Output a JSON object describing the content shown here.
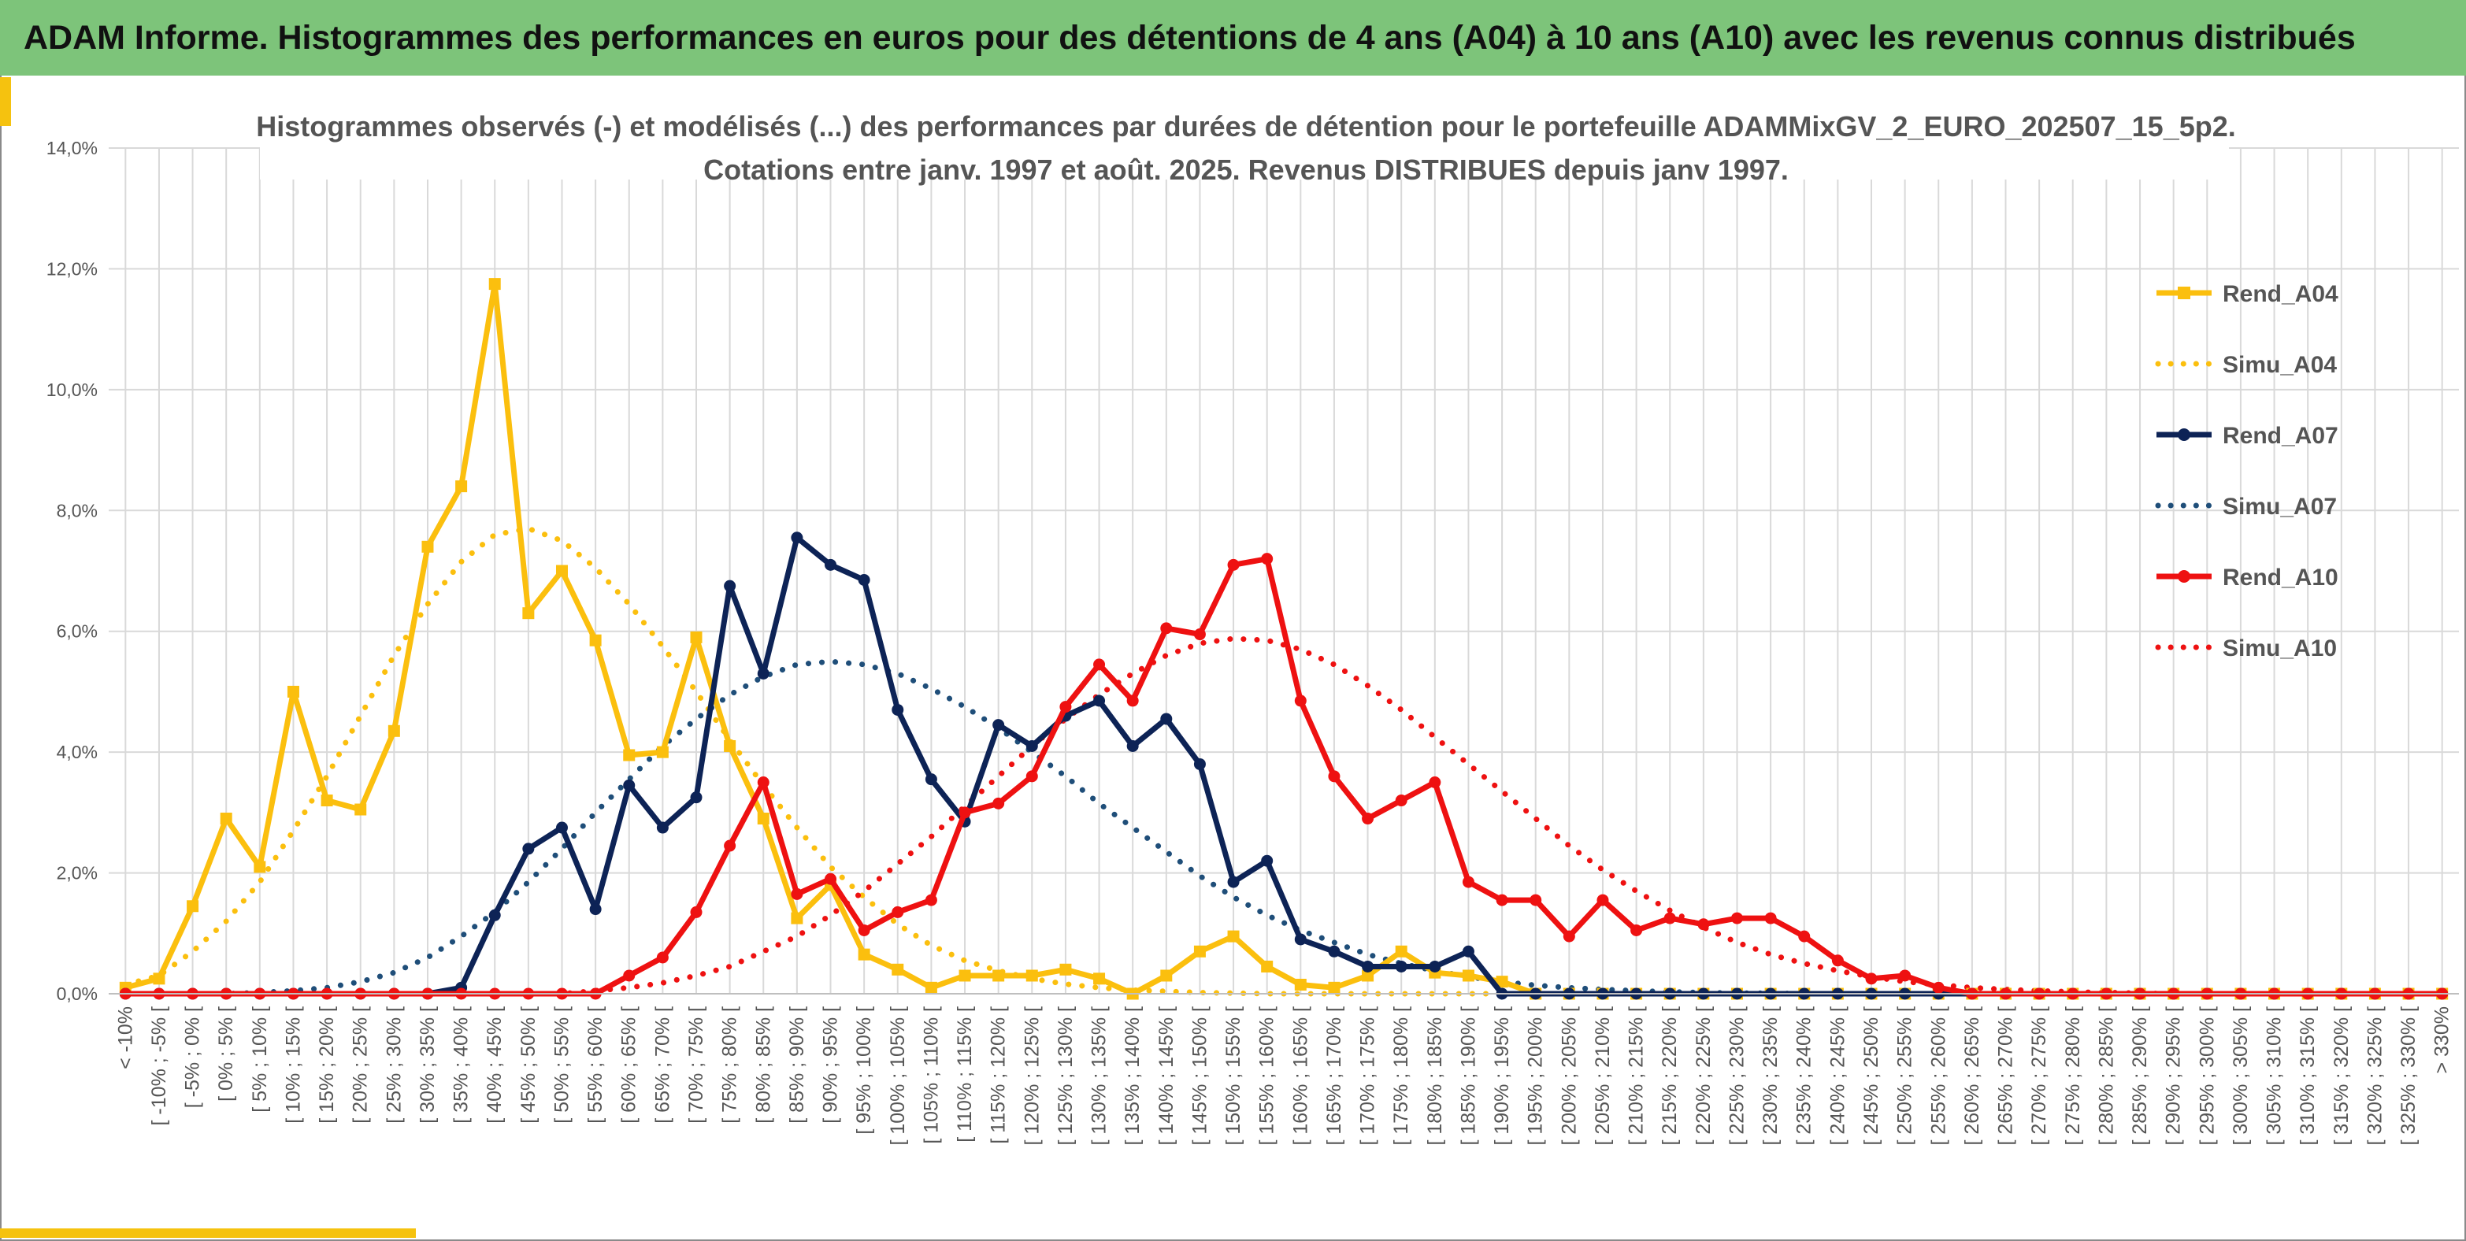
{
  "banner": {
    "title": "ADAM Informe. Histogrammes des performances en euros pour des détentions de 4 ans (A04) à 10 ans (A10) avec les revenus connus distribués"
  },
  "colors": {
    "banner_bg": "#7dc47a",
    "accent": "#f5c20f",
    "A04": "#fbbf0e",
    "A07": "#0d2356",
    "A07_simu": "#1f4e79",
    "A10": "#ee1111",
    "grid": "#d9d9d9",
    "text": "#555555"
  },
  "chart_data": {
    "type": "line",
    "title_lines": [
      "Histogrammes observés (-) et modélisés (...) des performances par durées de détention pour le portefeuille ADAMMixGV_2_EURO_202507_15_5p2.",
      "Cotations entre janv. 1997 et août. 2025. Revenus DISTRIBUES depuis janv 1997."
    ],
    "y_ticks": [
      "0,0%",
      "2,0%",
      "4,0%",
      "6,0%",
      "8,0%",
      "10,0%",
      "12,0%",
      "14,0%"
    ],
    "ylim": [
      0,
      14
    ],
    "grid": true,
    "legend_position": "right",
    "categories": [
      "< -10%",
      "[ -10% ; -5% [",
      "[ -5% ; 0% [",
      "[ 0% ; 5% [",
      "[ 5% ; 10% [",
      "[ 10% ; 15% [",
      "[ 15% ; 20% [",
      "[ 20% ; 25% [",
      "[ 25% ; 30% [",
      "[ 30% ; 35% [",
      "[ 35% ; 40% [",
      "[ 40% ; 45% [",
      "[ 45% ; 50% [",
      "[ 50% ; 55% [",
      "[ 55% ; 60% [",
      "[ 60% ; 65% [",
      "[ 65% ; 70% [",
      "[ 70% ; 75% [",
      "[ 75% ; 80% [",
      "[ 80% ; 85% [",
      "[ 85% ; 90% [",
      "[ 90% ; 95% [",
      "[ 95% ; 100% [",
      "[ 100% ; 105% [",
      "[ 105% ; 110% [",
      "[ 110% ; 115% [",
      "[ 115% ; 120% [",
      "[ 120% ; 125% [",
      "[ 125% ; 130% [",
      "[ 130% ; 135% [",
      "[ 135% ; 140% [",
      "[ 140% ; 145% [",
      "[ 145% ; 150% [",
      "[ 150% ; 155% [",
      "[ 155% ; 160% [",
      "[ 160% ; 165% [",
      "[ 165% ; 170% [",
      "[ 170% ; 175% [",
      "[ 175% ; 180% [",
      "[ 180% ; 185% [",
      "[ 185% ; 190% [",
      "[ 190% ; 195% [",
      "[ 195% ; 200% [",
      "[ 200% ; 205% [",
      "[ 205% ; 210% [",
      "[ 210% ; 215% [",
      "[ 215% ; 220% [",
      "[ 220% ; 225% [",
      "[ 225% ; 230% [",
      "[ 230% ; 235% [",
      "[ 235% ; 240% [",
      "[ 240% ; 245% [",
      "[ 245% ; 250% [",
      "[ 250% ; 255% [",
      "[ 255% ; 260% [",
      "[ 260% ; 265% [",
      "[ 265% ; 270% [",
      "[ 270% ; 275% [",
      "[ 275% ; 280% [",
      "[ 280% ; 285% [",
      "[ 285% ; 290% [",
      "[ 290% ; 295% [",
      "[ 295% ; 300% [",
      "[ 300% ; 305% [",
      "[ 305% ; 310% [",
      "[ 310% ; 315% [",
      "[ 315% ; 320% [",
      "[ 320% ; 325% [",
      "[ 325% ; 330% [",
      "> 330%"
    ],
    "series": [
      {
        "name": "Rend_A04",
        "style": "solid",
        "marker": "square",
        "color": "#fbbf0e",
        "values": [
          0.1,
          0.25,
          1.45,
          2.9,
          2.1,
          5.0,
          3.2,
          3.05,
          4.35,
          7.4,
          8.4,
          11.75,
          6.3,
          7.0,
          5.85,
          3.95,
          4.0,
          5.9,
          4.1,
          2.9,
          1.25,
          1.8,
          0.65,
          0.4,
          0.1,
          0.3,
          0.3,
          0.3,
          0.4,
          0.25,
          0.0,
          0.3,
          0.7,
          0.95,
          0.45,
          0.15,
          0.1,
          0.3,
          0.7,
          0.35,
          0.3,
          0.2,
          0.0,
          0.0,
          0.0,
          0.0,
          0.0,
          0.0,
          0.0,
          0.0,
          0.0,
          0.0,
          0.0,
          0.0,
          0.0,
          0.0,
          0.0,
          0.0,
          0.0,
          0.0,
          0.0,
          0.0,
          0.0,
          0.0,
          0.0,
          0.0,
          0.0,
          0.0,
          0.0,
          0.0
        ]
      },
      {
        "name": "Simu_A04",
        "style": "dotted",
        "color": "#fbbf0e",
        "values": [
          0.15,
          0.3,
          0.7,
          1.2,
          1.85,
          2.7,
          3.6,
          4.6,
          5.6,
          6.45,
          7.15,
          7.6,
          7.7,
          7.5,
          7.05,
          6.45,
          5.75,
          5.0,
          4.2,
          3.45,
          2.75,
          2.1,
          1.6,
          1.15,
          0.8,
          0.55,
          0.38,
          0.25,
          0.16,
          0.1,
          0.06,
          0.04,
          0.02,
          0.01,
          0.0,
          0.0,
          0.0,
          0.0,
          0.0,
          0.0,
          0.0,
          0.0,
          0.0,
          0.0,
          0.0,
          0.0,
          0.0,
          0.0,
          0.0,
          0.0,
          0.0,
          0.0,
          0.0,
          0.0,
          0.0,
          0.0,
          0.0,
          0.0,
          0.0,
          0.0,
          0.0,
          0.0,
          0.0,
          0.0,
          0.0,
          0.0,
          0.0,
          0.0,
          0.0,
          0.0
        ]
      },
      {
        "name": "Rend_A07",
        "style": "solid",
        "marker": "circle",
        "color": "#0d2356",
        "values": [
          0.0,
          0.0,
          0.0,
          0.0,
          0.0,
          0.0,
          0.0,
          0.0,
          0.0,
          0.0,
          0.1,
          1.3,
          2.4,
          2.75,
          1.4,
          3.45,
          2.75,
          3.25,
          6.75,
          5.3,
          7.55,
          7.1,
          6.85,
          4.7,
          3.55,
          2.85,
          4.45,
          4.1,
          4.6,
          4.85,
          4.1,
          4.55,
          3.8,
          1.85,
          2.2,
          0.9,
          0.7,
          0.45,
          0.45,
          0.45,
          0.7,
          0.0,
          0.0,
          0.0,
          0.0,
          0.0,
          0.0,
          0.0,
          0.0,
          0.0,
          0.0,
          0.0,
          0.0,
          0.0,
          0.0,
          0.0,
          0.0,
          0.0,
          0.0,
          0.0,
          0.0,
          0.0,
          0.0,
          0.0,
          0.0,
          0.0,
          0.0,
          0.0,
          0.0,
          0.0
        ]
      },
      {
        "name": "Simu_A07",
        "style": "dotted",
        "color": "#1f4e79",
        "values": [
          0.0,
          0.0,
          0.0,
          0.0,
          0.02,
          0.05,
          0.1,
          0.2,
          0.35,
          0.6,
          0.95,
          1.35,
          1.85,
          2.4,
          3.0,
          3.55,
          4.1,
          4.55,
          4.95,
          5.25,
          5.45,
          5.5,
          5.45,
          5.3,
          5.05,
          4.75,
          4.4,
          4.0,
          3.6,
          3.15,
          2.75,
          2.35,
          1.95,
          1.6,
          1.3,
          1.05,
          0.85,
          0.65,
          0.5,
          0.38,
          0.28,
          0.2,
          0.14,
          0.1,
          0.07,
          0.05,
          0.03,
          0.02,
          0.01,
          0.01,
          0.0,
          0.0,
          0.0,
          0.0,
          0.0,
          0.0,
          0.0,
          0.0,
          0.0,
          0.0,
          0.0,
          0.0,
          0.0,
          0.0,
          0.0,
          0.0,
          0.0,
          0.0,
          0.0,
          0.0
        ]
      },
      {
        "name": "Rend_A10",
        "style": "solid",
        "marker": "circle",
        "color": "#ee1111",
        "values": [
          0.0,
          0.0,
          0.0,
          0.0,
          0.0,
          0.0,
          0.0,
          0.0,
          0.0,
          0.0,
          0.0,
          0.0,
          0.0,
          0.0,
          0.0,
          0.3,
          0.6,
          1.35,
          2.45,
          3.5,
          1.65,
          1.9,
          1.05,
          1.35,
          1.55,
          3.0,
          3.15,
          3.6,
          4.75,
          5.45,
          4.85,
          6.05,
          5.95,
          7.1,
          7.2,
          4.85,
          3.6,
          2.9,
          3.2,
          3.5,
          1.85,
          1.55,
          1.55,
          0.95,
          1.55,
          1.05,
          1.25,
          1.15,
          1.25,
          1.25,
          0.95,
          0.55,
          0.25,
          0.3,
          0.1,
          0.0,
          0.0,
          0.0,
          0.0,
          0.0,
          0.0,
          0.0,
          0.0,
          0.0,
          0.0,
          0.0,
          0.0,
          0.0,
          0.0,
          0.0
        ]
      },
      {
        "name": "Simu_A10",
        "style": "dotted",
        "color": "#ee1111",
        "values": [
          0.0,
          0.0,
          0.0,
          0.0,
          0.0,
          0.0,
          0.0,
          0.0,
          0.0,
          0.0,
          0.0,
          0.0,
          0.0,
          0.0,
          0.05,
          0.1,
          0.18,
          0.3,
          0.45,
          0.7,
          0.95,
          1.3,
          1.7,
          2.15,
          2.6,
          3.1,
          3.6,
          4.1,
          4.55,
          4.95,
          5.3,
          5.6,
          5.8,
          5.88,
          5.85,
          5.7,
          5.45,
          5.1,
          4.7,
          4.25,
          3.8,
          3.35,
          2.9,
          2.45,
          2.05,
          1.7,
          1.38,
          1.1,
          0.85,
          0.65,
          0.5,
          0.38,
          0.28,
          0.2,
          0.15,
          0.1,
          0.07,
          0.05,
          0.03,
          0.02,
          0.01,
          0.0,
          0.0,
          0.0,
          0.0,
          0.0,
          0.0,
          0.0,
          0.0,
          0.0
        ]
      }
    ]
  }
}
